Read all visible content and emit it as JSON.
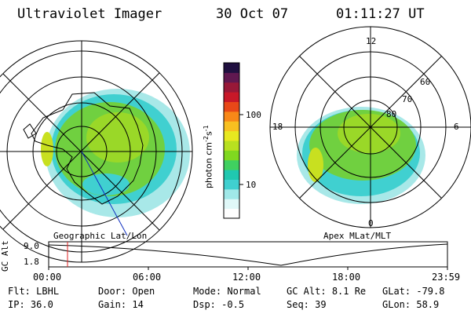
{
  "header": {
    "title": "Ultraviolet Imager",
    "date": "30 Oct 07",
    "time": "01:11:27 UT"
  },
  "colorbar": {
    "unit_label": "photon cm",
    "unit_exp1": "-2",
    "unit_s": "s",
    "unit_exp2": "-1",
    "ticks": [
      "100",
      "10"
    ],
    "colors": [
      "#ffffff",
      "#e0f8f8",
      "#a0e8e8",
      "#40d0d0",
      "#20c8b0",
      "#40d060",
      "#80d820",
      "#b8e020",
      "#e8e820",
      "#f8c020",
      "#f88818",
      "#e84818",
      "#c81828",
      "#981838",
      "#601850",
      "#201040"
    ]
  },
  "left_panel": {
    "label": "Geographic Lat/Lon"
  },
  "right_panel": {
    "label": "Apex MLat/MLT",
    "mlt_labels": {
      "top": "12",
      "left": "18",
      "right": "6",
      "bottom": "0"
    },
    "lat_labels": [
      "60",
      "70",
      "80"
    ]
  },
  "altitude_plot": {
    "ylabel": "GC Alt",
    "yticks": [
      "9.0",
      "1.8"
    ],
    "xticks": [
      "00:00",
      "06:00",
      "12:00",
      "18:00",
      "23:59"
    ],
    "marker_time": "01:11"
  },
  "status": {
    "row1": [
      {
        "key": "Flt:",
        "value": "LBHL"
      },
      {
        "key": "Door:",
        "value": "Open"
      },
      {
        "key": "Mode:",
        "value": "Normal"
      },
      {
        "key": "GC Alt:",
        "value": "8.1 Re"
      },
      {
        "key": "GLat:",
        "value": "-79.8"
      }
    ],
    "row2": [
      {
        "key": "IP:",
        "value": "36.0"
      },
      {
        "key": "Gain:",
        "value": "14"
      },
      {
        "key": "Dsp:",
        "value": "-0.5"
      },
      {
        "key": "Seq:",
        "value": "39"
      },
      {
        "key": "GLon:",
        "value": "58.9"
      }
    ]
  }
}
